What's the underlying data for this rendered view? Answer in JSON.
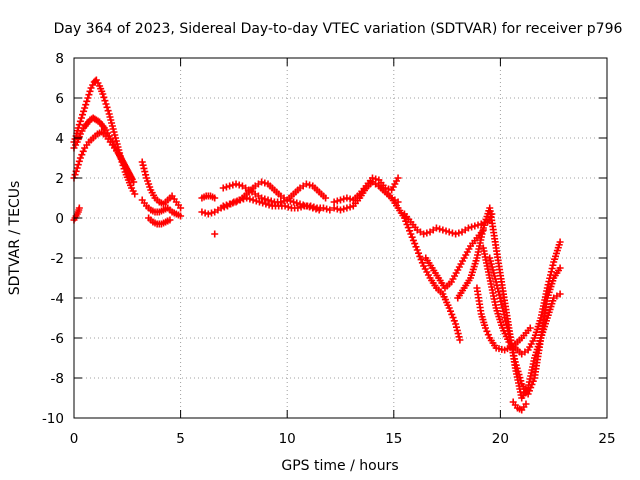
{
  "chart_data": {
    "type": "scatter",
    "title": "Day 364 of 2023, Sidereal Day-to-day VTEC variation (SDTVAR) for receiver p796",
    "xlabel": "GPS time / hours",
    "ylabel": "SDTVAR / TECUs",
    "xlim": [
      0,
      25
    ],
    "ylim": [
      -10,
      8
    ],
    "xticks": [
      0,
      5,
      10,
      15,
      20,
      25
    ],
    "yticks": [
      -10,
      -8,
      -6,
      -4,
      -2,
      0,
      2,
      4,
      6,
      8
    ],
    "grid": true,
    "marker": "+",
    "color": "#ff0000",
    "series": [
      {
        "name": "s1",
        "x": [
          0.0,
          0.1,
          0.2,
          0.35,
          0.5,
          0.65,
          0.8,
          0.95,
          1.05,
          1.2,
          1.35,
          1.5,
          1.65,
          1.8,
          1.95,
          2.1,
          2.25,
          2.4,
          2.55,
          2.7,
          2.85
        ],
        "y": [
          3.8,
          4.1,
          4.5,
          5.0,
          5.5,
          6.0,
          6.5,
          6.8,
          6.9,
          6.6,
          6.2,
          5.7,
          5.2,
          4.6,
          4.0,
          3.4,
          2.8,
          2.3,
          1.9,
          1.5,
          1.2
        ]
      },
      {
        "name": "s2",
        "x": [
          0.0,
          0.15,
          0.3,
          0.45,
          0.6,
          0.75,
          0.9,
          1.05,
          1.2,
          1.35,
          1.5,
          1.65,
          1.8,
          2.0,
          2.2,
          2.4,
          2.6,
          2.8
        ],
        "y": [
          3.5,
          3.8,
          4.2,
          4.5,
          4.7,
          4.9,
          5.0,
          4.9,
          4.8,
          4.6,
          4.4,
          4.1,
          3.8,
          3.4,
          3.0,
          2.6,
          2.2,
          1.8
        ]
      },
      {
        "name": "s3",
        "x": [
          0.0,
          0.15,
          0.3,
          0.5,
          0.7,
          0.9,
          1.1,
          1.3,
          1.5,
          1.7,
          1.9,
          2.1,
          2.3,
          2.5,
          2.7
        ],
        "y": [
          2.0,
          2.5,
          3.0,
          3.5,
          3.8,
          4.0,
          4.2,
          4.3,
          4.1,
          3.8,
          3.5,
          3.2,
          2.8,
          2.4,
          2.0
        ]
      },
      {
        "name": "s4",
        "x": [
          0.0,
          0.1,
          0.2,
          0.25
        ],
        "y": [
          -0.1,
          0.1,
          0.3,
          0.5
        ]
      },
      {
        "name": "s5",
        "x": [
          3.2,
          3.4,
          3.6,
          3.8,
          4.0,
          4.2,
          4.4,
          4.6,
          4.8,
          5.0
        ],
        "y": [
          2.8,
          2.0,
          1.4,
          1.0,
          0.8,
          0.7,
          0.9,
          1.1,
          0.8,
          0.5
        ]
      },
      {
        "name": "s6",
        "x": [
          3.2,
          3.4,
          3.6,
          3.8,
          4.0,
          4.2,
          4.4,
          4.6,
          4.8,
          5.0
        ],
        "y": [
          0.9,
          0.6,
          0.4,
          0.3,
          0.3,
          0.4,
          0.5,
          0.3,
          0.2,
          0.1
        ]
      },
      {
        "name": "s7",
        "x": [
          3.5,
          3.7,
          3.9,
          4.1,
          4.3,
          4.5
        ],
        "y": [
          0.0,
          -0.2,
          -0.3,
          -0.3,
          -0.2,
          -0.1
        ]
      },
      {
        "name": "s8",
        "x": [
          6.0,
          6.3,
          6.6,
          6.9,
          7.2,
          7.5,
          7.8,
          8.1,
          8.4,
          8.7,
          9.0,
          9.3,
          9.6,
          9.9,
          10.2,
          10.5,
          10.8,
          11.1,
          11.4,
          11.7,
          12.0
        ],
        "y": [
          0.3,
          0.2,
          0.3,
          0.5,
          0.6,
          0.8,
          0.9,
          1.0,
          0.9,
          0.8,
          0.7,
          0.6,
          0.6,
          0.6,
          0.5,
          0.5,
          0.6,
          0.6,
          0.5,
          0.5,
          0.4
        ]
      },
      {
        "name": "s9",
        "x": [
          7.0,
          7.3,
          7.6,
          7.9,
          8.2,
          8.5,
          8.8,
          9.1,
          9.4,
          9.7,
          10.0,
          10.3,
          10.6,
          10.9,
          11.2,
          11.5,
          11.8
        ],
        "y": [
          1.5,
          1.6,
          1.7,
          1.6,
          1.4,
          1.2,
          1.0,
          0.9,
          0.8,
          0.8,
          0.9,
          1.2,
          1.5,
          1.7,
          1.6,
          1.3,
          1.0
        ]
      },
      {
        "name": "s10",
        "x": [
          7.0,
          7.3,
          7.6,
          7.9,
          8.2,
          8.5,
          8.8,
          9.1,
          9.4,
          9.7,
          10.0,
          10.3,
          10.6,
          10.9,
          11.2,
          11.5
        ],
        "y": [
          0.6,
          0.7,
          0.8,
          1.0,
          1.3,
          1.6,
          1.8,
          1.7,
          1.4,
          1.1,
          0.9,
          0.8,
          0.7,
          0.6,
          0.5,
          0.4
        ]
      },
      {
        "name": "s11",
        "x": [
          6.0,
          6.2,
          6.4,
          6.6
        ],
        "y": [
          1.0,
          1.1,
          1.1,
          1.0
        ]
      },
      {
        "name": "s12",
        "x": [
          6.6
        ],
        "y": [
          -0.8
        ]
      },
      {
        "name": "s13",
        "x": [
          12.2,
          12.5,
          12.8,
          13.1,
          13.4,
          13.7,
          14.0,
          14.3,
          14.6,
          14.9,
          15.2
        ],
        "y": [
          0.5,
          0.4,
          0.5,
          0.6,
          1.0,
          1.5,
          1.8,
          1.6,
          1.3,
          1.0,
          0.8
        ]
      },
      {
        "name": "s14",
        "x": [
          12.2,
          12.5,
          12.8,
          13.1,
          13.4,
          13.7,
          14.0,
          14.3,
          14.6,
          14.9,
          15.2
        ],
        "y": [
          0.8,
          0.9,
          1.0,
          0.9,
          1.2,
          1.6,
          2.0,
          1.9,
          1.5,
          1.4,
          2.0
        ]
      },
      {
        "name": "s15",
        "x": [
          14.0,
          14.3,
          14.6,
          14.9,
          15.2,
          15.5,
          15.8,
          16.1,
          16.4,
          16.7,
          17.0,
          17.3,
          17.6,
          17.9,
          18.1
        ],
        "y": [
          1.8,
          1.6,
          1.3,
          1.0,
          0.5,
          0.0,
          -0.8,
          -1.6,
          -2.4,
          -3.0,
          -3.5,
          -3.8,
          -4.5,
          -5.3,
          -6.1
        ]
      },
      {
        "name": "s16",
        "x": [
          15.5,
          15.8,
          16.1,
          16.4,
          16.7,
          17.0,
          17.3,
          17.6,
          17.9,
          18.2,
          18.5,
          18.8,
          19.1,
          19.4,
          19.6
        ],
        "y": [
          0.2,
          -0.2,
          -0.6,
          -0.8,
          -0.7,
          -0.5,
          -0.6,
          -0.7,
          -0.8,
          -0.7,
          -0.5,
          -0.4,
          -0.3,
          -0.2,
          0.2
        ]
      },
      {
        "name": "s17",
        "x": [
          16.5,
          16.8,
          17.1,
          17.4,
          17.7,
          18.0,
          18.3,
          18.6,
          18.9,
          19.2
        ],
        "y": [
          -2.0,
          -2.5,
          -3.0,
          -3.5,
          -3.2,
          -2.6,
          -2.0,
          -1.4,
          -1.0,
          -0.6
        ]
      },
      {
        "name": "s18",
        "x": [
          18.0,
          18.3,
          18.6,
          18.9,
          19.2,
          19.5,
          19.8,
          20.1,
          20.4,
          20.7,
          21.0,
          21.3,
          21.6,
          21.9,
          22.2,
          22.5,
          22.8
        ],
        "y": [
          -4.0,
          -3.5,
          -3.0,
          -2.0,
          -0.5,
          0.5,
          -1.5,
          -3.5,
          -5.5,
          -7.5,
          -9.0,
          -8.5,
          -7.0,
          -6.0,
          -5.0,
          -4.0,
          -3.8
        ]
      },
      {
        "name": "s19",
        "x": [
          19.2,
          19.5,
          19.8,
          20.1,
          20.4,
          20.7,
          21.0,
          21.3,
          21.6,
          21.9,
          22.2,
          22.5,
          22.8
        ],
        "y": [
          -1.5,
          -3.0,
          -4.5,
          -5.5,
          -6.2,
          -6.5,
          -6.8,
          -6.6,
          -6.0,
          -5.0,
          -3.5,
          -2.2,
          -1.2
        ]
      },
      {
        "name": "s20",
        "x": [
          19.5,
          19.8,
          20.1,
          20.4,
          20.7,
          21.0,
          21.3,
          21.6,
          21.9,
          22.2,
          22.5,
          22.8
        ],
        "y": [
          -2.0,
          -3.2,
          -4.5,
          -5.8,
          -7.2,
          -8.3,
          -8.8,
          -8.0,
          -6.0,
          -4.0,
          -3.0,
          -2.5
        ]
      },
      {
        "name": "s21",
        "x": [
          20.6,
          20.8,
          21.0,
          21.2
        ],
        "y": [
          -9.2,
          -9.5,
          -9.6,
          -9.3
        ]
      },
      {
        "name": "s22",
        "x": [
          18.9,
          19.1,
          19.3,
          19.5,
          19.8,
          20.2,
          20.6,
          21.0,
          21.4
        ],
        "y": [
          -3.5,
          -4.8,
          -5.5,
          -6.0,
          -6.5,
          -6.6,
          -6.4,
          -6.0,
          -5.5
        ]
      }
    ]
  }
}
